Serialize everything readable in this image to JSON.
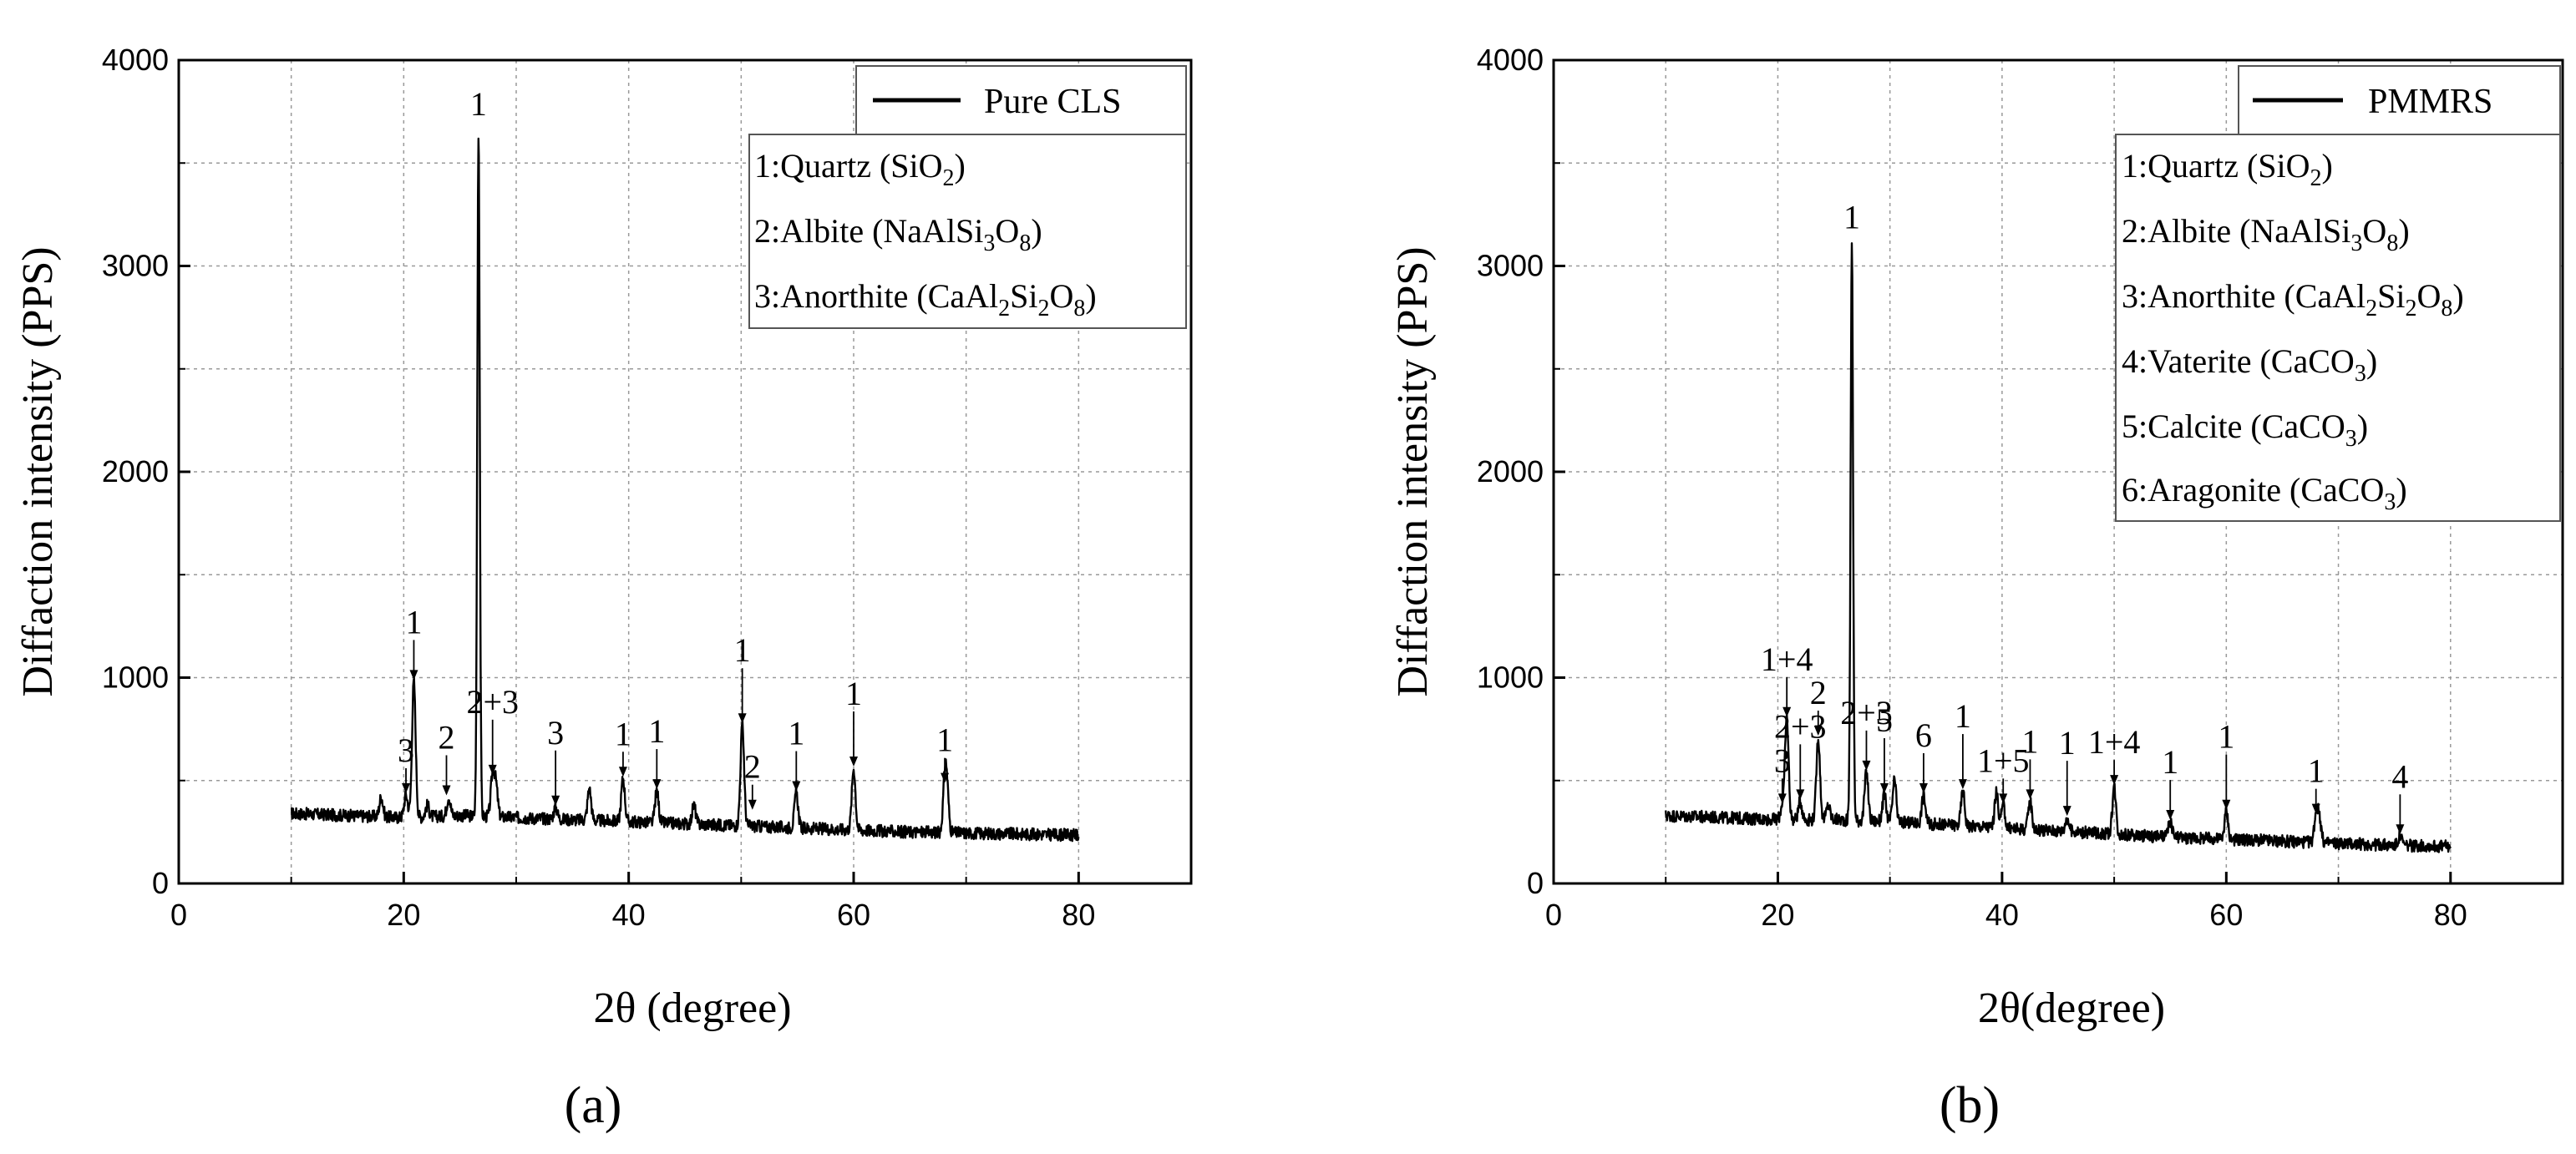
{
  "charts": [
    {
      "caption": "(a)",
      "xlabel": "2θ (degree)",
      "ylabel": "Diffaction intensity (PPS)",
      "legend": {
        "series_label": "Pure CLS",
        "entries": [
          {
            "prefix": "1:Quartz (SiO",
            "sub": "2",
            "suffix": ")"
          },
          {
            "prefix": "2:Albite (NaAlSi",
            "sub": "3",
            "mid": "O",
            "sub2": "8",
            "suffix": ")"
          },
          {
            "prefix": "3:Anorthite (CaAl",
            "sub": "2",
            "mid": "Si",
            "sub2": "2",
            "mid2": "O",
            "sub3": "8",
            "suffix": ")"
          }
        ]
      }
    },
    {
      "caption": "(b)",
      "xlabel": "2θ(degree)",
      "ylabel": "Diffaction intensity (PPS)",
      "legend": {
        "series_label": "PMMRS",
        "entries": [
          {
            "prefix": "1:Quartz (SiO",
            "sub": "2",
            "suffix": ")"
          },
          {
            "prefix": "2:Albite (NaAlSi",
            "sub": "3",
            "mid": "O",
            "sub2": "8",
            "suffix": ")"
          },
          {
            "prefix": "3:Anorthite (CaAl",
            "sub": "2",
            "mid": "Si",
            "sub2": "2",
            "mid2": "O",
            "sub3": "8",
            "suffix": ")"
          },
          {
            "prefix": "4:Vaterite (CaCO",
            "sub": "3",
            "suffix": ")"
          },
          {
            "prefix": "5:Calcite (CaCO",
            "sub": "3",
            "suffix": ")"
          },
          {
            "prefix": "6:Aragonite (CaCO",
            "sub": "3",
            "suffix": ")"
          }
        ]
      }
    }
  ],
  "chart_data": [
    {
      "type": "line",
      "title": "",
      "xlabel": "2θ (degree)",
      "ylabel": "Diffaction intensity (PPS)",
      "xlim": [
        0,
        90
      ],
      "ylim": [
        0,
        4000
      ],
      "xticks": [
        0,
        20,
        40,
        60,
        80
      ],
      "yticks": [
        0,
        1000,
        2000,
        3000,
        4000
      ],
      "grid": true,
      "legend_position": "top-right",
      "series": [
        {
          "name": "Pure CLS",
          "baseline": [
            [
              10,
              340
            ],
            [
              15,
              330
            ],
            [
              20,
              320
            ],
            [
              25,
              330
            ],
            [
              30,
              320
            ],
            [
              35,
              310
            ],
            [
              40,
              300
            ],
            [
              45,
              290
            ],
            [
              50,
              280
            ],
            [
              55,
              270
            ],
            [
              60,
              260
            ],
            [
              65,
              250
            ],
            [
              70,
              245
            ],
            [
              75,
              240
            ],
            [
              80,
              235
            ]
          ],
          "peaks": [
            [
              18,
              420
            ],
            [
              20.2,
              430
            ],
            [
              20.9,
              980
            ],
            [
              22.1,
              380
            ],
            [
              24.0,
              420
            ],
            [
              26.65,
              3660
            ],
            [
              27.9,
              520
            ],
            [
              28.2,
              470
            ],
            [
              33.5,
              370
            ],
            [
              36.5,
              460
            ],
            [
              39.5,
              510
            ],
            [
              42.5,
              450
            ],
            [
              45.8,
              380
            ],
            [
              50.1,
              770
            ],
            [
              54.9,
              440
            ],
            [
              60.0,
              560
            ],
            [
              68.1,
              480
            ],
            [
              68.3,
              430
            ]
          ]
        }
      ],
      "annotations": [
        {
          "text": "1",
          "x": 26.65,
          "y": 3660
        },
        {
          "text": "1",
          "x": 20.9,
          "y": 980
        },
        {
          "text": "2+3",
          "x": 27.9,
          "y": 520
        },
        {
          "text": "3",
          "x": 20.2,
          "y": 430
        },
        {
          "text": "2",
          "x": 23.8,
          "y": 420
        },
        {
          "text": "3",
          "x": 33.5,
          "y": 370
        },
        {
          "text": "1",
          "x": 39.5,
          "y": 510
        },
        {
          "text": "1",
          "x": 42.5,
          "y": 450
        },
        {
          "text": "1",
          "x": 50.1,
          "y": 770
        },
        {
          "text": "2",
          "x": 51.0,
          "y": 350
        },
        {
          "text": "1",
          "x": 54.9,
          "y": 440
        },
        {
          "text": "1",
          "x": 60.0,
          "y": 560
        },
        {
          "text": "1",
          "x": 68.1,
          "y": 480
        }
      ]
    },
    {
      "type": "line",
      "title": "",
      "xlabel": "2θ(degree)",
      "ylabel": "Diffaction intensity (PPS)",
      "xlim": [
        0,
        90
      ],
      "ylim": [
        0,
        4000
      ],
      "xticks": [
        0,
        20,
        40,
        60,
        80
      ],
      "yticks": [
        0,
        1000,
        2000,
        3000,
        4000
      ],
      "grid": true,
      "legend_position": "top-right",
      "series": [
        {
          "name": "PMMRS",
          "baseline": [
            [
              10,
              330
            ],
            [
              15,
              320
            ],
            [
              20,
              310
            ],
            [
              25,
              310
            ],
            [
              30,
              300
            ],
            [
              35,
              285
            ],
            [
              40,
              270
            ],
            [
              45,
              255
            ],
            [
              50,
              240
            ],
            [
              55,
              225
            ],
            [
              60,
              215
            ],
            [
              65,
              205
            ],
            [
              70,
              195
            ],
            [
              75,
              185
            ],
            [
              80,
              180
            ]
          ],
          "peaks": [
            [
              20.4,
              380
            ],
            [
              20.8,
              800
            ],
            [
              22.0,
              400
            ],
            [
              23.6,
              710
            ],
            [
              24.5,
              380
            ],
            [
              26.6,
              3110
            ],
            [
              27.9,
              540
            ],
            [
              29.5,
              430
            ],
            [
              30.4,
              500
            ],
            [
              33.0,
              430
            ],
            [
              36.5,
              450
            ],
            [
              39.5,
              440
            ],
            [
              40.1,
              380
            ],
            [
              42.5,
              400
            ],
            [
              45.8,
              320
            ],
            [
              50.0,
              470
            ],
            [
              55.0,
              300
            ],
            [
              60.0,
              350
            ],
            [
              68.0,
              330
            ],
            [
              68.3,
              320
            ],
            [
              75.5,
              230
            ]
          ]
        }
      ],
      "annotations": [
        {
          "text": "1",
          "x": 26.6,
          "y": 3110
        },
        {
          "text": "1+4",
          "x": 20.8,
          "y": 800
        },
        {
          "text": "2+3",
          "x": 22.0,
          "y": 400
        },
        {
          "text": "2",
          "x": 23.6,
          "y": 710
        },
        {
          "text": "2+3",
          "x": 27.9,
          "y": 540
        },
        {
          "text": "5",
          "x": 29.5,
          "y": 430
        },
        {
          "text": "3",
          "x": 20.4,
          "y": 380
        },
        {
          "text": "6",
          "x": 33.0,
          "y": 430
        },
        {
          "text": "1",
          "x": 36.5,
          "y": 450
        },
        {
          "text": "1+5",
          "x": 40.1,
          "y": 380
        },
        {
          "text": "1",
          "x": 42.5,
          "y": 400
        },
        {
          "text": "1",
          "x": 45.8,
          "y": 320
        },
        {
          "text": "1+4",
          "x": 50.0,
          "y": 470
        },
        {
          "text": "1",
          "x": 55.0,
          "y": 300
        },
        {
          "text": "1",
          "x": 60.0,
          "y": 350
        },
        {
          "text": "1",
          "x": 68.0,
          "y": 330
        },
        {
          "text": "4",
          "x": 75.5,
          "y": 230
        }
      ]
    }
  ]
}
